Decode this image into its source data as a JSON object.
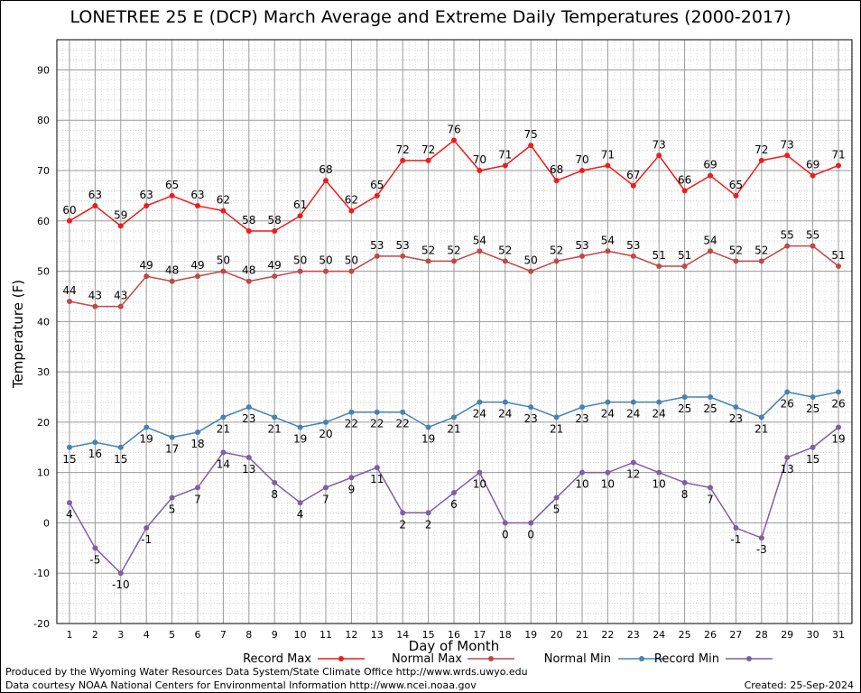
{
  "chart_data": {
    "type": "line",
    "title": "LONETREE 25 E (DCP) March Average and Extreme Daily Temperatures (2000-2017)",
    "xlabel": "Day of Month",
    "ylabel": "Temperature (F)",
    "ylim": [
      -20,
      96
    ],
    "y_ticks": [
      -20,
      -10,
      0,
      10,
      20,
      30,
      40,
      50,
      60,
      70,
      80,
      90
    ],
    "x": [
      1,
      2,
      3,
      4,
      5,
      6,
      7,
      8,
      9,
      10,
      11,
      12,
      13,
      14,
      15,
      16,
      17,
      18,
      19,
      20,
      21,
      22,
      23,
      24,
      25,
      26,
      27,
      28,
      29,
      30,
      31
    ],
    "grid": true,
    "legend_placement": "bottom",
    "series": [
      {
        "name": "Record Max",
        "color": "#ee1c1c",
        "label_pos": "above",
        "values": [
          60,
          63,
          59,
          63,
          65,
          63,
          62,
          58,
          58,
          61,
          68,
          62,
          65,
          72,
          72,
          76,
          70,
          71,
          75,
          68,
          70,
          71,
          67,
          73,
          66,
          69,
          65,
          72,
          73,
          69,
          71
        ]
      },
      {
        "name": "Normal Max",
        "color": "#c04848",
        "label_pos": "above",
        "values": [
          44,
          43,
          43,
          49,
          48,
          49,
          50,
          48,
          49,
          50,
          50,
          50,
          53,
          53,
          52,
          52,
          54,
          52,
          50,
          52,
          53,
          54,
          53,
          51,
          51,
          54,
          52,
          52,
          55,
          55,
          51
        ]
      },
      {
        "name": "Normal Min",
        "color": "#4682b4",
        "label_pos": "below",
        "values": [
          15,
          16,
          15,
          19,
          17,
          18,
          21,
          23,
          21,
          19,
          20,
          22,
          22,
          22,
          19,
          21,
          24,
          24,
          23,
          21,
          23,
          24,
          24,
          24,
          25,
          25,
          23,
          21,
          26,
          25,
          26
        ]
      },
      {
        "name": "Record Min",
        "color": "#7d5fa6",
        "label_pos": "below",
        "values": [
          4,
          -5,
          -10,
          -1,
          5,
          7,
          14,
          13,
          8,
          4,
          7,
          9,
          11,
          2,
          2,
          6,
          10,
          0,
          0,
          5,
          10,
          10,
          12,
          10,
          8,
          7,
          -1,
          -3,
          13,
          15,
          19
        ]
      }
    ]
  },
  "footer": {
    "produced_by": "Produced by the Wyoming Water Resources Data System/State Climate Office http://www.wrds.uwyo.edu",
    "courtesy": "Data courtesy NOAA National Centers for Environmental Information http://www.ncei.noaa.gov",
    "created": "Created:  25-Sep-2024"
  }
}
